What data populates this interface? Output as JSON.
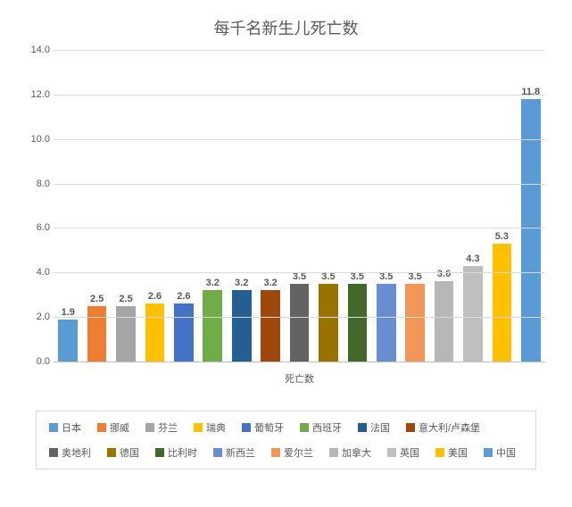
{
  "chart": {
    "type": "bar",
    "title": "每千名新生儿死亡数",
    "title_fontsize": 18,
    "title_color": "#595959",
    "x_axis_label": "死亡数",
    "ylim": [
      0,
      14
    ],
    "ytick_step": 2,
    "yticks": [
      "0.0",
      "2.0",
      "4.0",
      "6.0",
      "8.0",
      "10.0",
      "12.0",
      "14.0"
    ],
    "grid_color": "#d9d9d9",
    "axis_color": "#bfbfbf",
    "background_color": "#ffffff",
    "label_fontsize": 11,
    "label_color": "#595959",
    "value_label_fontsize": 11,
    "value_label_color": "#595959",
    "bar_width": 0.85,
    "categories": [
      {
        "label": "日本",
        "value": 1.9,
        "color": "#5b9bd5"
      },
      {
        "label": "挪威",
        "value": 2.5,
        "color": "#ed7d31"
      },
      {
        "label": "芬兰",
        "value": 2.5,
        "color": "#a5a5a5"
      },
      {
        "label": "瑞典",
        "value": 2.6,
        "color": "#ffc000"
      },
      {
        "label": "葡萄牙",
        "value": 2.6,
        "color": "#4472c4"
      },
      {
        "label": "西班牙",
        "value": 3.2,
        "color": "#70ad47"
      },
      {
        "label": "法国",
        "value": 3.2,
        "color": "#255e91"
      },
      {
        "label": "意大利/卢森堡",
        "value": 3.2,
        "color": "#9e480e"
      },
      {
        "label": "奥地利",
        "value": 3.5,
        "color": "#636363"
      },
      {
        "label": "德国",
        "value": 3.5,
        "color": "#997300"
      },
      {
        "label": "比利时",
        "value": 3.5,
        "color": "#43682b"
      },
      {
        "label": "新西兰",
        "value": 3.5,
        "color": "#698ed0"
      },
      {
        "label": "爱尔兰",
        "value": 3.5,
        "color": "#f1975a"
      },
      {
        "label": "加拿大",
        "value": 3.6,
        "color": "#b7b7b7"
      },
      {
        "label": "英国",
        "value": 4.3,
        "color": "#bfbfbf"
      },
      {
        "label": "美国",
        "value": 5.3,
        "color": "#ffc000"
      },
      {
        "label": "中国",
        "value": 11.8,
        "color": "#5b9bd5"
      }
    ],
    "legend_border_color": "#d9d9d9"
  }
}
